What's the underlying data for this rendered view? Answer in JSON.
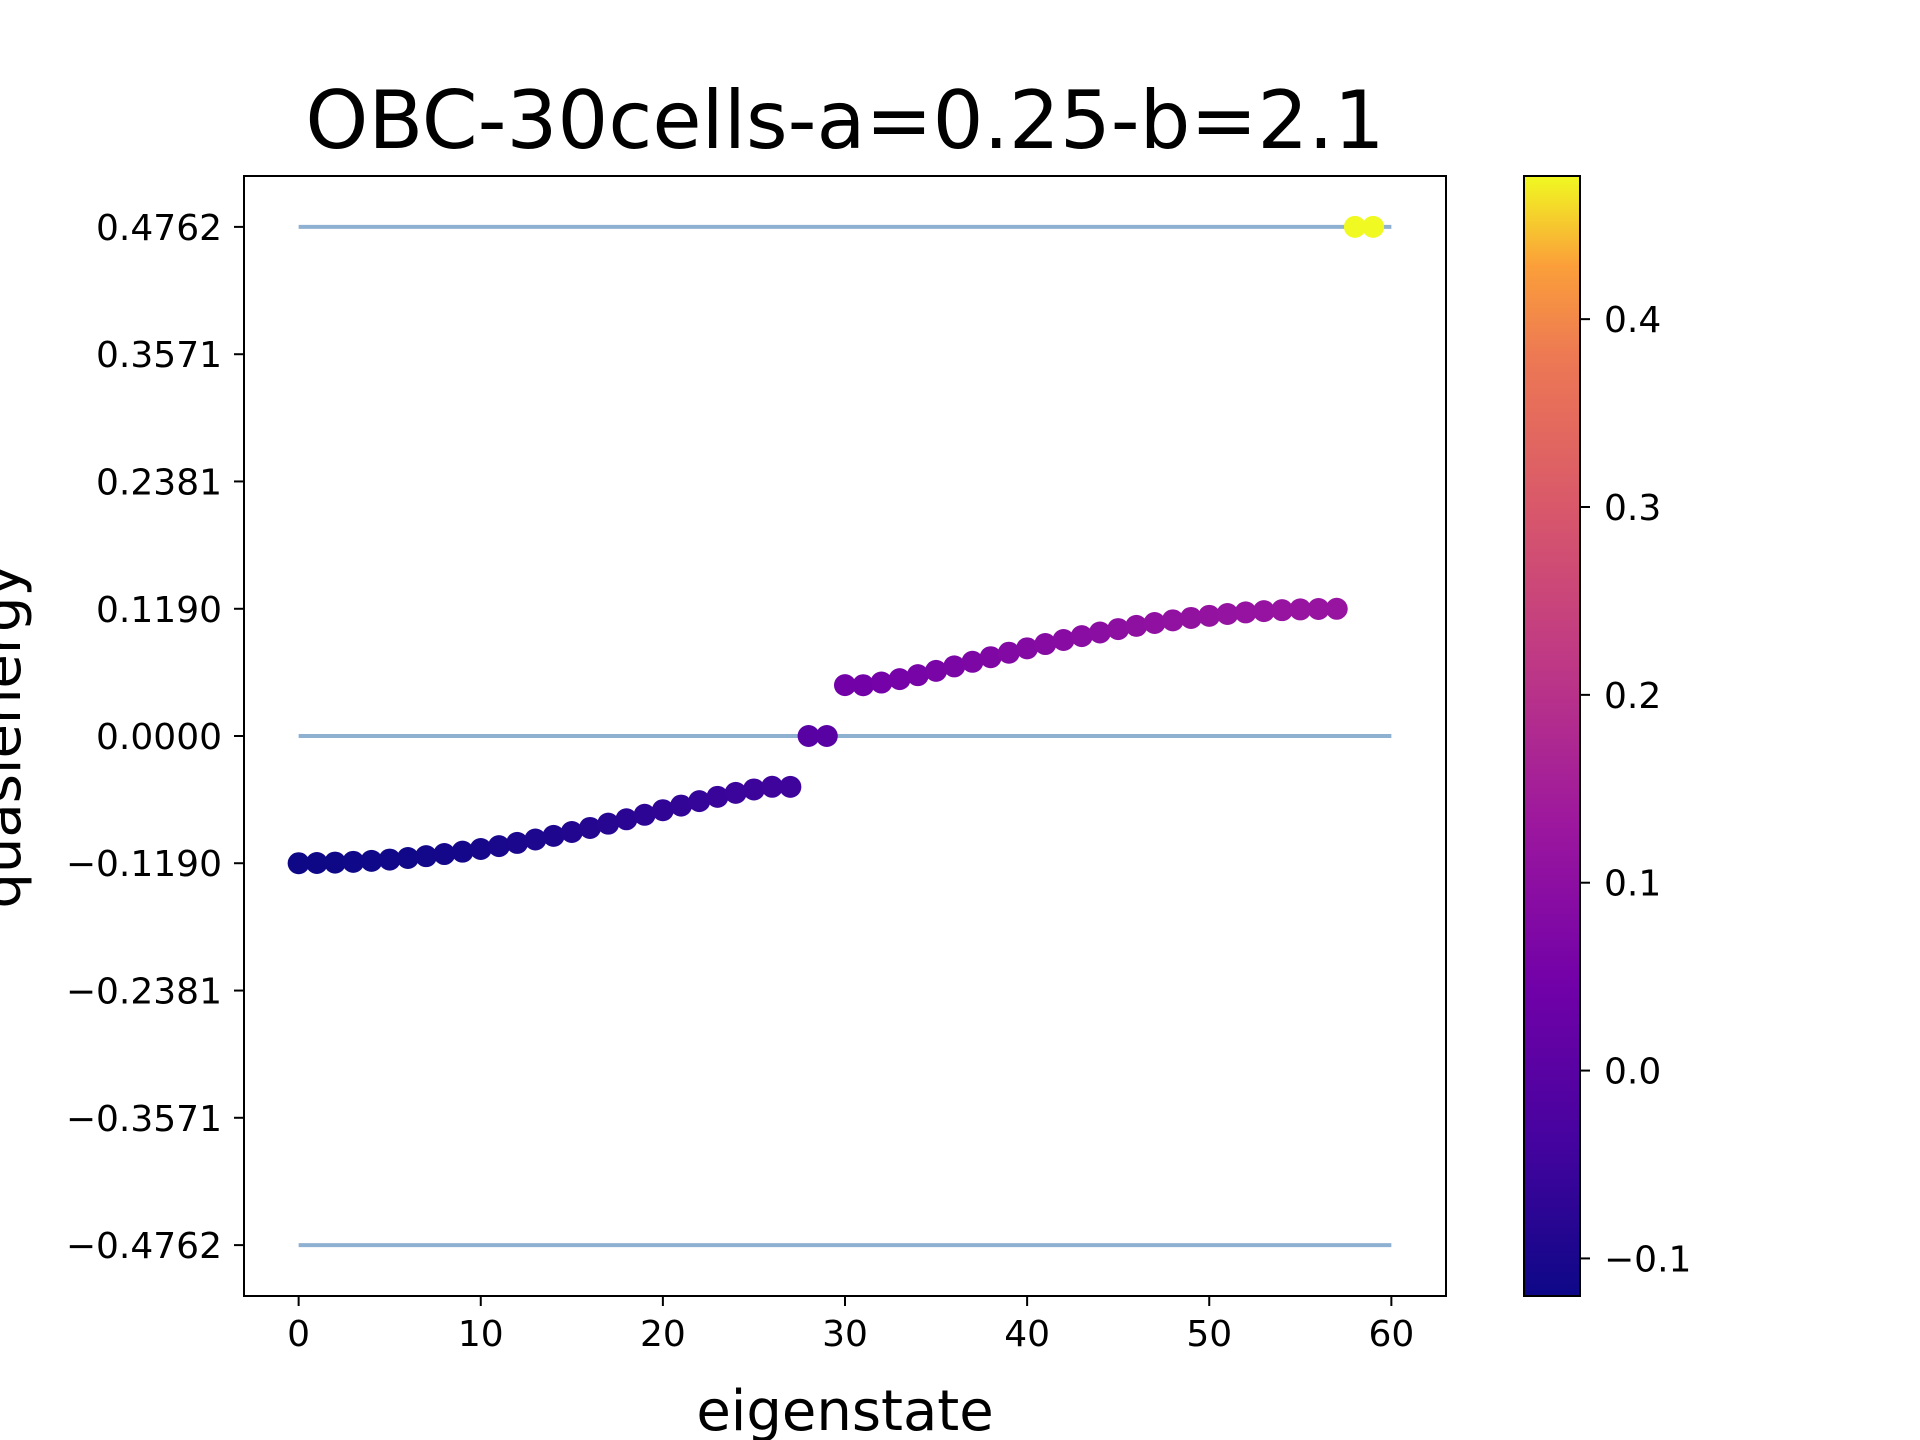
{
  "chart_data": {
    "type": "scatter",
    "title": "OBC-30cells-a=0.25-b=2.1",
    "xlabel": "eigenstate",
    "ylabel": "quasienergy",
    "xlim": [
      -3,
      63
    ],
    "ylim": [
      -0.5238,
      0.5238
    ],
    "xticks": [
      0,
      10,
      20,
      30,
      40,
      50,
      60
    ],
    "xtick_labels": [
      "0",
      "10",
      "20",
      "30",
      "40",
      "50",
      "60"
    ],
    "yticks": [
      0.4762,
      0.3571,
      0.2381,
      0.119,
      0.0,
      -0.119,
      -0.2381,
      -0.3571,
      -0.4762
    ],
    "ytick_labels": [
      "0.4762",
      "0.3571",
      "0.2381",
      "0.1190",
      "0.0000",
      "−0.1190",
      "−0.2381",
      "−0.3571",
      "−0.4762"
    ],
    "grid": false,
    "colormap": "plasma",
    "colorbar": {
      "range": [
        -0.12,
        0.4762
      ],
      "ticks": [
        0.4,
        0.3,
        0.2,
        0.1,
        0.0,
        -0.1
      ],
      "tick_labels": [
        "0.4",
        "0.3",
        "0.2",
        "0.1",
        "0.0",
        "−0.1"
      ]
    },
    "reference_lines": {
      "color": "#8fb1d1",
      "x_range": [
        0,
        60
      ],
      "y_values": [
        0.4762,
        0.0,
        -0.4762
      ]
    },
    "points": {
      "x": [
        0,
        1,
        2,
        3,
        4,
        5,
        6,
        7,
        8,
        9,
        10,
        11,
        12,
        13,
        14,
        15,
        16,
        17,
        18,
        19,
        20,
        21,
        22,
        23,
        24,
        25,
        26,
        27,
        28,
        29,
        30,
        31,
        32,
        33,
        34,
        35,
        36,
        37,
        38,
        39,
        40,
        41,
        42,
        43,
        44,
        45,
        46,
        47,
        48,
        49,
        50,
        51,
        52,
        53,
        54,
        55,
        56,
        57,
        58,
        59
      ],
      "y": [
        -0.119,
        -0.1188,
        -0.1184,
        -0.1177,
        -0.1168,
        -0.1156,
        -0.1141,
        -0.1124,
        -0.1104,
        -0.1082,
        -0.1057,
        -0.103,
        -0.1,
        -0.0968,
        -0.0934,
        -0.0898,
        -0.086,
        -0.082,
        -0.0779,
        -0.0737,
        -0.0694,
        -0.0651,
        -0.0609,
        -0.0569,
        -0.0532,
        -0.05,
        -0.0475,
        -0.0476,
        0.0,
        0.0,
        0.0476,
        0.0475,
        0.05,
        0.0532,
        0.0569,
        0.0609,
        0.0651,
        0.0694,
        0.0737,
        0.0779,
        0.082,
        0.086,
        0.0898,
        0.0934,
        0.0968,
        0.1,
        0.103,
        0.1057,
        0.1082,
        0.1104,
        0.1124,
        0.1141,
        0.1156,
        0.1168,
        0.1177,
        0.1184,
        0.1188,
        0.119,
        0.4762,
        0.4762
      ]
    }
  }
}
